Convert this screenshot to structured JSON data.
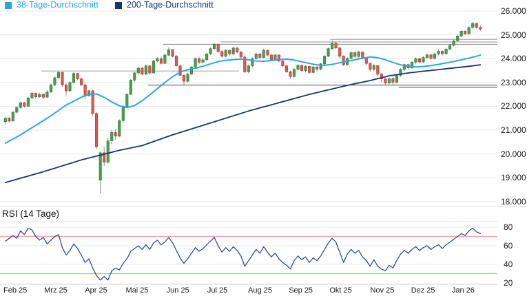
{
  "legend": {
    "items": [
      {
        "label": "38-Tage-Durchschnitt",
        "color": "#29a8e0"
      },
      {
        "label": "200-Tage-Durchschnitt",
        "color": "#15366e"
      }
    ]
  },
  "rsi_panel": {
    "title": "RSI (14 Tage)",
    "y_labels": [
      "80",
      "60",
      "40",
      "20"
    ],
    "y_values": [
      80,
      60,
      40,
      20
    ],
    "overbought": 70,
    "oversold": 30,
    "line_color": "#2b4d8e",
    "overbought_color": "#f2a09c",
    "oversold_color": "#a6cd8a"
  },
  "main_axis": {
    "y_labels": [
      "26.000",
      "25.000",
      "24.000",
      "23.000",
      "22.000",
      "21.000",
      "20.000",
      "19.000",
      "18.000"
    ],
    "y_values": [
      26000,
      25000,
      24000,
      23000,
      22000,
      21000,
      20000,
      19000,
      18000
    ]
  },
  "x_axis": {
    "labels": [
      "Feb 25",
      "Mrz 25",
      "Apr 25",
      "Mai 25",
      "Jun 25",
      "Jul 25",
      "Aug 25",
      "Sep 25",
      "Okt 25",
      "Nov 25",
      "Dez 25",
      "Jan 26"
    ]
  },
  "chart_data": {
    "type": "candlestick",
    "title": "",
    "x_range_label": "Feb 2025 - Jan 2026",
    "price_range": [
      18000,
      26000
    ],
    "grid": true,
    "colors": {
      "up": "#4c9e50",
      "up_stroke": "#357d39",
      "down": "#dd5a52",
      "down_stroke": "#b03a34",
      "wick": "#808080",
      "grid": "#e7e7e7",
      "panel_border": "#d4d4d4"
    },
    "candles": [
      [
        21350,
        21550,
        21250,
        21500
      ],
      [
        21500,
        21560,
        21300,
        21380
      ],
      [
        21380,
        21800,
        21350,
        21750
      ],
      [
        21750,
        22000,
        21700,
        21950
      ],
      [
        21950,
        22200,
        21900,
        22150
      ],
      [
        22150,
        22180,
        21950,
        22000
      ],
      [
        22000,
        22400,
        21980,
        22350
      ],
      [
        22350,
        22600,
        22300,
        22550
      ],
      [
        22550,
        22580,
        22320,
        22400
      ],
      [
        22400,
        22570,
        22350,
        22500
      ],
      [
        22500,
        22550,
        22300,
        22380
      ],
      [
        22380,
        22680,
        22350,
        22600
      ],
      [
        22600,
        22950,
        22550,
        22900
      ],
      [
        22900,
        23250,
        22850,
        23200
      ],
      [
        23200,
        23480,
        23150,
        23420
      ],
      [
        23420,
        23450,
        22800,
        22900
      ],
      [
        22900,
        22950,
        22450,
        22650
      ],
      [
        22650,
        23050,
        22600,
        23000
      ],
      [
        23000,
        23440,
        22950,
        23380
      ],
      [
        23380,
        23400,
        23100,
        23150
      ],
      [
        23150,
        23200,
        22850,
        22900
      ],
      [
        22900,
        22950,
        22300,
        22450
      ],
      [
        22450,
        22700,
        22400,
        22650
      ],
      [
        22650,
        22680,
        21600,
        21700
      ],
      [
        21700,
        21750,
        20200,
        20300
      ],
      [
        18900,
        20100,
        18350,
        20050
      ],
      [
        20050,
        20300,
        19500,
        19650
      ],
      [
        19650,
        20700,
        19600,
        20550
      ],
      [
        20550,
        21000,
        20400,
        20900
      ],
      [
        20900,
        21050,
        20600,
        20750
      ],
      [
        20750,
        21450,
        20700,
        21400
      ],
      [
        21400,
        22050,
        21300,
        22000
      ],
      [
        22000,
        22550,
        21950,
        22500
      ],
      [
        22500,
        23150,
        22480,
        23100
      ],
      [
        23100,
        23450,
        23000,
        23400
      ],
      [
        23400,
        23680,
        23350,
        23600
      ],
      [
        23600,
        23650,
        23280,
        23350
      ],
      [
        23350,
        23750,
        23300,
        23700
      ],
      [
        23700,
        23720,
        23320,
        23400
      ],
      [
        23400,
        23950,
        23380,
        23900
      ],
      [
        23900,
        24060,
        23850,
        24000
      ],
      [
        24000,
        24080,
        23750,
        23800
      ],
      [
        23800,
        24200,
        23780,
        24150
      ],
      [
        24150,
        24480,
        24100,
        24380
      ],
      [
        24380,
        24400,
        24050,
        24100
      ],
      [
        24100,
        24150,
        23650,
        23700
      ],
      [
        23700,
        23750,
        23250,
        23300
      ],
      [
        23300,
        23350,
        22900,
        23050
      ],
      [
        23050,
        23400,
        23000,
        23350
      ],
      [
        23350,
        23700,
        23300,
        23650
      ],
      [
        23650,
        24050,
        23600,
        24000
      ],
      [
        24000,
        24080,
        23780,
        23850
      ],
      [
        23850,
        24010,
        23800,
        23950
      ],
      [
        23950,
        24250,
        23900,
        24200
      ],
      [
        24200,
        24470,
        24150,
        24420
      ],
      [
        24420,
        24660,
        24380,
        24600
      ],
      [
        24600,
        24640,
        24250,
        24300
      ],
      [
        24300,
        24350,
        24030,
        24100
      ],
      [
        24100,
        24400,
        24050,
        24350
      ],
      [
        24350,
        24380,
        24120,
        24200
      ],
      [
        24200,
        24500,
        24150,
        24450
      ],
      [
        24450,
        24480,
        24220,
        24280
      ],
      [
        24280,
        24320,
        24000,
        24070
      ],
      [
        24070,
        24090,
        23400,
        23450
      ],
      [
        23450,
        23750,
        23380,
        23700
      ],
      [
        23700,
        24050,
        23650,
        24000
      ],
      [
        24000,
        24260,
        23950,
        24200
      ],
      [
        24200,
        24250,
        23990,
        24050
      ],
      [
        24050,
        24420,
        24010,
        24350
      ],
      [
        24350,
        24380,
        24100,
        24150
      ],
      [
        24150,
        24200,
        23900,
        23950
      ],
      [
        23950,
        24210,
        23900,
        24150
      ],
      [
        24150,
        24180,
        23850,
        23900
      ],
      [
        23900,
        23950,
        23640,
        23700
      ],
      [
        23700,
        23730,
        23400,
        23450
      ],
      [
        23450,
        23500,
        23150,
        23250
      ],
      [
        23250,
        23600,
        23200,
        23550
      ],
      [
        23550,
        23770,
        23500,
        23720
      ],
      [
        23720,
        23750,
        23440,
        23500
      ],
      [
        23500,
        23730,
        23420,
        23680
      ],
      [
        23680,
        23700,
        23350,
        23420
      ],
      [
        23420,
        23700,
        23380,
        23650
      ],
      [
        23650,
        23690,
        23460,
        23560
      ],
      [
        23560,
        23830,
        23510,
        23780
      ],
      [
        23780,
        24160,
        23720,
        24100
      ],
      [
        24100,
        24470,
        24060,
        24420
      ],
      [
        24420,
        24770,
        24360,
        24650
      ],
      [
        24650,
        24700,
        24390,
        24450
      ],
      [
        24450,
        24480,
        24020,
        24100
      ],
      [
        24100,
        24140,
        23690,
        23750
      ],
      [
        23750,
        24060,
        23700,
        24010
      ],
      [
        24010,
        24300,
        23960,
        24250
      ],
      [
        24250,
        24280,
        24030,
        24090
      ],
      [
        24090,
        24330,
        24010,
        24280
      ],
      [
        24280,
        24300,
        23990,
        24050
      ],
      [
        24050,
        24080,
        23720,
        23800
      ],
      [
        23800,
        23850,
        23460,
        23550
      ],
      [
        23550,
        23780,
        23490,
        23710
      ],
      [
        23710,
        23730,
        23260,
        23350
      ],
      [
        23350,
        23400,
        23010,
        23150
      ],
      [
        23150,
        23210,
        22870,
        22980
      ],
      [
        22980,
        23210,
        22880,
        23160
      ],
      [
        23160,
        23250,
        22910,
        23010
      ],
      [
        23010,
        23350,
        22950,
        23300
      ],
      [
        23300,
        23600,
        23240,
        23550
      ],
      [
        23550,
        23800,
        23490,
        23750
      ],
      [
        23750,
        23790,
        23550,
        23610
      ],
      [
        23610,
        23900,
        23580,
        23850
      ],
      [
        23850,
        24050,
        23790,
        24000
      ],
      [
        24000,
        24040,
        23800,
        23860
      ],
      [
        23860,
        24110,
        23810,
        24050
      ],
      [
        24050,
        24210,
        24000,
        24160
      ],
      [
        24160,
        24190,
        23950,
        24010
      ],
      [
        24010,
        24260,
        23960,
        24200
      ],
      [
        24200,
        24380,
        24140,
        24310
      ],
      [
        24310,
        24350,
        24130,
        24210
      ],
      [
        24210,
        24460,
        24160,
        24400
      ],
      [
        24400,
        24610,
        24350,
        24560
      ],
      [
        24560,
        24800,
        24510,
        24750
      ],
      [
        24750,
        25010,
        24700,
        24950
      ],
      [
        24950,
        25200,
        24900,
        25150
      ],
      [
        25150,
        25190,
        24980,
        25050
      ],
      [
        25050,
        25360,
        25000,
        25310
      ],
      [
        25310,
        25540,
        25260,
        25480
      ],
      [
        25480,
        25510,
        25260,
        25310
      ],
      [
        25310,
        25390,
        25160,
        25240
      ]
    ],
    "series": [
      {
        "name": "38-Tage-Durchschnitt",
        "color": "#29a8e0",
        "width": 2,
        "anchors": [
          [
            0,
            20450
          ],
          [
            4,
            20800
          ],
          [
            8,
            21200
          ],
          [
            12,
            21600
          ],
          [
            16,
            22050
          ],
          [
            20,
            22380
          ],
          [
            22,
            22500
          ],
          [
            24,
            22520
          ],
          [
            26,
            22380
          ],
          [
            28,
            22180
          ],
          [
            30,
            22020
          ],
          [
            32,
            21950
          ],
          [
            34,
            22030
          ],
          [
            36,
            22230
          ],
          [
            38,
            22480
          ],
          [
            40,
            22740
          ],
          [
            42,
            23000
          ],
          [
            44,
            23240
          ],
          [
            46,
            23430
          ],
          [
            48,
            23540
          ],
          [
            50,
            23600
          ],
          [
            52,
            23680
          ],
          [
            54,
            23780
          ],
          [
            56,
            23880
          ],
          [
            58,
            23930
          ],
          [
            60,
            23960
          ],
          [
            62,
            23980
          ],
          [
            64,
            23950
          ],
          [
            66,
            23900
          ],
          [
            68,
            23890
          ],
          [
            70,
            23920
          ],
          [
            72,
            23960
          ],
          [
            74,
            23980
          ],
          [
            76,
            23940
          ],
          [
            78,
            23870
          ],
          [
            80,
            23800
          ],
          [
            82,
            23740
          ],
          [
            84,
            23720
          ],
          [
            86,
            23760
          ],
          [
            88,
            23830
          ],
          [
            90,
            23890
          ],
          [
            92,
            23950
          ],
          [
            94,
            24020
          ],
          [
            96,
            24070
          ],
          [
            98,
            24040
          ],
          [
            100,
            23950
          ],
          [
            102,
            23840
          ],
          [
            104,
            23740
          ],
          [
            106,
            23680
          ],
          [
            108,
            23650
          ],
          [
            110,
            23670
          ],
          [
            112,
            23710
          ],
          [
            114,
            23760
          ],
          [
            116,
            23820
          ],
          [
            118,
            23880
          ],
          [
            120,
            23950
          ],
          [
            122,
            24020
          ],
          [
            124,
            24100
          ],
          [
            125,
            24150
          ]
        ]
      },
      {
        "name": "200-Tage-Durchschnitt",
        "color": "#15366e",
        "width": 1.8,
        "anchors": [
          [
            0,
            18800
          ],
          [
            10,
            19250
          ],
          [
            20,
            19750
          ],
          [
            30,
            20150
          ],
          [
            36,
            20350
          ],
          [
            44,
            20800
          ],
          [
            54,
            21300
          ],
          [
            64,
            21800
          ],
          [
            72,
            22150
          ],
          [
            80,
            22500
          ],
          [
            90,
            22880
          ],
          [
            96,
            23080
          ],
          [
            101,
            23280
          ],
          [
            106,
            23400
          ],
          [
            110,
            23470
          ],
          [
            114,
            23540
          ],
          [
            118,
            23610
          ],
          [
            122,
            23680
          ],
          [
            125,
            23740
          ]
        ]
      }
    ],
    "levels": [
      {
        "price": 24810,
        "from": 86,
        "to": 126,
        "extend": true,
        "color": "#9a9a9a"
      },
      {
        "price": 24700,
        "from": 57,
        "to": 126,
        "extend": true,
        "color": "#9a9a9a"
      },
      {
        "price": 24600,
        "from": 42,
        "to": 126,
        "extend": true,
        "color": "#9a9a9a"
      },
      {
        "price": 23480,
        "from": 10,
        "to": 62,
        "extend": false,
        "color": "#a8a8a8"
      },
      {
        "price": 22890,
        "from": 38,
        "to": 126,
        "extend": true,
        "color": "#555555"
      },
      {
        "price": 22800,
        "from": 104,
        "to": 126,
        "extend": true,
        "color": "#555555"
      }
    ],
    "rsi": {
      "name": "RSI (14 Tage)",
      "range": [
        20,
        80
      ],
      "values": [
        65,
        68,
        71,
        68,
        76,
        72,
        79,
        77,
        70,
        66,
        69,
        62,
        66,
        70,
        72,
        58,
        50,
        55,
        62,
        57,
        50,
        42,
        46,
        36,
        28,
        23,
        27,
        23,
        33,
        36,
        34,
        41,
        46,
        54,
        57,
        60,
        56,
        61,
        56,
        63,
        66,
        61,
        64,
        69,
        63,
        55,
        47,
        41,
        46,
        52,
        58,
        54,
        57,
        61,
        65,
        69,
        60,
        53,
        58,
        54,
        59,
        55,
        49,
        38,
        44,
        50,
        56,
        52,
        59,
        53,
        48,
        52,
        46,
        42,
        39,
        35,
        44,
        49,
        45,
        48,
        42,
        47,
        44,
        49,
        56,
        63,
        68,
        64,
        53,
        42,
        51,
        56,
        52,
        55,
        48,
        44,
        38,
        45,
        38,
        35,
        33,
        39,
        36,
        44,
        51,
        55,
        52,
        56,
        59,
        55,
        58,
        60,
        56,
        59,
        61,
        57,
        61,
        64,
        67,
        70,
        73,
        71,
        76,
        79,
        75,
        73
      ]
    }
  }
}
